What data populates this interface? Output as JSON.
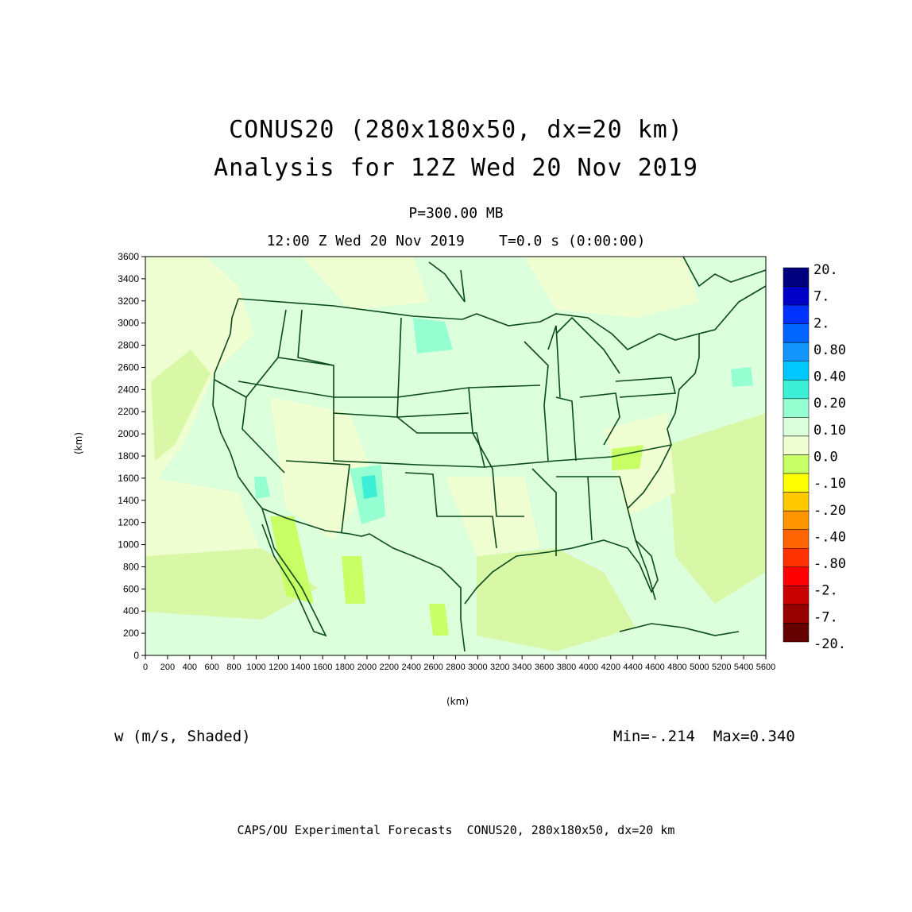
{
  "title": {
    "line1": "CONUS20 (280x180x50, dx=20 km)",
    "line2": "Analysis for 12Z Wed 20 Nov 2019"
  },
  "subtitle": {
    "level": "P=300.00 MB",
    "time": "12:00 Z Wed 20 Nov 2019    T=0.0 s (0:00:00)"
  },
  "axes": {
    "x_unit": "(km)",
    "y_unit": "(km)",
    "x_ticks": [
      "0",
      "200",
      "400",
      "600",
      "800",
      "1000",
      "1200",
      "1400",
      "1600",
      "1800",
      "2000",
      "2200",
      "2400",
      "2600",
      "2800",
      "3000",
      "3200",
      "3400",
      "3600",
      "3800",
      "4000",
      "4200",
      "4400",
      "4600",
      "4800",
      "5000",
      "5200",
      "5400",
      "5600"
    ],
    "y_ticks": [
      "0",
      "200",
      "400",
      "600",
      "800",
      "1000",
      "1200",
      "1400",
      "1600",
      "1800",
      "2000",
      "2200",
      "2400",
      "2600",
      "2800",
      "3000",
      "3200",
      "3400",
      "3600"
    ],
    "x_range": [
      0,
      5600
    ],
    "y_range": [
      0,
      3600
    ]
  },
  "colorbar": {
    "labels": [
      "20.",
      "7.",
      "2.",
      "0.80",
      "0.40",
      "0.20",
      "0.10",
      "0.0",
      "-.10",
      "-.20",
      "-.40",
      "-.80",
      "-2.",
      "-7.",
      "-20."
    ],
    "colors": [
      "#00007f",
      "#0000c8",
      "#0032ff",
      "#0064ff",
      "#1496ff",
      "#00c8ff",
      "#3cf0d8",
      "#96ffd2",
      "#dcffdc",
      "#f0ffd2",
      "#c8ff64",
      "#ffff00",
      "#ffc800",
      "#ff9600",
      "#ff6400",
      "#ff3200",
      "#ff0000",
      "#c80000",
      "#960000",
      "#640000"
    ]
  },
  "field": {
    "variable": "w (m/s, Shaded)",
    "minmax": "Min=-.214  Max=0.340"
  },
  "footer": "CAPS/OU Experimental Forecasts  CONUS20, 280x180x50, dx=20 km",
  "map_colors": {
    "background": "#dcffdc",
    "light": "#f0ffd2",
    "weak_negative": "#d8f8a8",
    "negative": "#c8ff64",
    "positive": "#96ffd2",
    "strong_positive": "#3cf0d8",
    "boundary": "#0a4a1a"
  }
}
